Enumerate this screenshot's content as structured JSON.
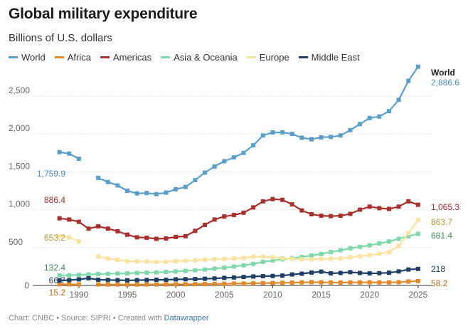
{
  "title": "Global military expenditure",
  "subtitle": "Billions of U.S. dollars",
  "footer": {
    "prefix": "Chart: CNBC • Source: SIPRI • Created with ",
    "link": "Datawrapper"
  },
  "chart_data": {
    "type": "line",
    "title": "Global military expenditure",
    "subtitle": "Billions of U.S. dollars",
    "xlabel": "",
    "ylabel": "",
    "xlim": [
      1987,
      2025.6
    ],
    "ylim": [
      0,
      2800
    ],
    "x_ticks": [
      1990,
      1995,
      2000,
      2005,
      2010,
      2015,
      2020,
      2025
    ],
    "y_ticks": [
      0,
      500,
      1000,
      1500,
      2000,
      2500
    ],
    "y_tick_labels": [
      "0",
      "500",
      "1,000",
      "1,500",
      "2,000",
      "2,500"
    ],
    "grid": true,
    "legend_position": "top",
    "series": [
      {
        "name": "World",
        "color": "#5b9fc8",
        "start_label": "1,759.9",
        "end_label": "2,886.6",
        "end_name": "World",
        "segments": [
          {
            "x": [
              1988,
              1989,
              1990
            ],
            "y": [
              1759.9,
              1740,
              1672
            ]
          },
          {
            "x": [
              1992,
              1993,
              1994,
              1995,
              1996,
              1997,
              1998,
              1999,
              2000,
              2001,
              2002,
              2003,
              2004,
              2005,
              2006,
              2007,
              2008,
              2009,
              2010,
              2011,
              2012,
              2013,
              2014,
              2015,
              2016,
              2017,
              2018,
              2019,
              2020,
              2021,
              2022,
              2023,
              2024,
              2025
            ],
            "y": [
              1420,
              1365,
              1320,
              1250,
              1215,
              1220,
              1205,
              1225,
              1270,
              1300,
              1390,
              1490,
              1570,
              1640,
              1690,
              1750,
              1850,
              1980,
              2020,
              2020,
              2000,
              1950,
              1930,
              1955,
              1960,
              1980,
              2050,
              2130,
              2210,
              2230,
              2300,
              2450,
              2700,
              2886.6
            ]
          }
        ]
      },
      {
        "name": "Africa",
        "color": "#e08a2c",
        "start_label": "15.2",
        "end_label": "58.2",
        "segments": [
          {
            "x": [
              1988,
              1989,
              1990
            ],
            "y": [
              15.2,
              14,
              13
            ]
          },
          {
            "x": [
              1992,
              1993,
              1994,
              1995,
              1996,
              1997,
              1998,
              1999,
              2000,
              2001,
              2002,
              2003,
              2004,
              2005,
              2006,
              2007,
              2008,
              2009,
              2010,
              2011,
              2012,
              2013,
              2014,
              2015,
              2016,
              2017,
              2018,
              2019,
              2020,
              2021,
              2022,
              2023,
              2024,
              2025
            ],
            "y": [
              13,
              12,
              12,
              12,
              12,
              13,
              13,
              14,
              15,
              16,
              17,
              18,
              20,
              22,
              24,
              26,
              29,
              31,
              33,
              35,
              37,
              40,
              43,
              41,
              39,
              38,
              40,
              40,
              41,
              40,
              40,
              42,
              52,
              58.2
            ]
          }
        ]
      },
      {
        "name": "Americas",
        "color": "#a8302e",
        "start_label": "886.4",
        "end_label": "1,065.3",
        "segments": [
          {
            "x": [
              1988,
              1989,
              1990,
              1991,
              1992,
              1993,
              1994,
              1995,
              1996,
              1997,
              1998,
              1999,
              2000,
              2001,
              2002,
              2003,
              2004,
              2005,
              2006,
              2007,
              2008,
              2009,
              2010,
              2011,
              2012,
              2013,
              2014,
              2015,
              2016,
              2017,
              2018,
              2019,
              2020,
              2021,
              2022,
              2023,
              2024,
              2025
            ],
            "y": [
              886.4,
              870,
              840,
              750,
              780,
              750,
              715,
              670,
              635,
              630,
              615,
              620,
              640,
              650,
              720,
              800,
              870,
              910,
              930,
              960,
              1030,
              1110,
              1140,
              1130,
              1070,
              990,
              940,
              920,
              915,
              920,
              945,
              1000,
              1040,
              1020,
              1010,
              1040,
              1110,
              1065.3
            ]
          }
        ]
      },
      {
        "name": "Asia & Oceania",
        "color": "#7fd8a9",
        "start_label": "132.4",
        "end_label": "681.4",
        "segments": [
          {
            "x": [
              1988,
              1989,
              1990,
              1991,
              1992,
              1993,
              1994,
              1995,
              1996,
              1997,
              1998,
              1999,
              2000,
              2001,
              2002,
              2003,
              2004,
              2005,
              2006,
              2007,
              2008,
              2009,
              2010,
              2011,
              2012,
              2013,
              2014,
              2015,
              2016,
              2017,
              2018,
              2019,
              2020,
              2021,
              2022,
              2023,
              2024,
              2025
            ],
            "y": [
              132.4,
              135,
              140,
              145,
              150,
              153,
              157,
              160,
              165,
              170,
              172,
              178,
              185,
              192,
              200,
              210,
              222,
              235,
              250,
              265,
              285,
              310,
              330,
              345,
              360,
              375,
              395,
              415,
              440,
              465,
              490,
              510,
              530,
              555,
              580,
              615,
              650,
              681.4
            ]
          }
        ]
      },
      {
        "name": "Europe",
        "color": "#f8e3a0",
        "start_label": "653.2",
        "end_label": "863.7",
        "segments": [
          {
            "x": [
              1988,
              1989,
              1990
            ],
            "y": [
              653.2,
              635,
              580
            ]
          },
          {
            "x": [
              1992,
              1993,
              1994,
              1995,
              1996,
              1997,
              1998,
              1999,
              2000,
              2001,
              2002,
              2003,
              2004,
              2005,
              2006,
              2007,
              2008,
              2009,
              2010,
              2011,
              2012,
              2013,
              2014,
              2015,
              2016,
              2017,
              2018,
              2019,
              2020,
              2021,
              2022,
              2023,
              2024,
              2025
            ],
            "y": [
              380,
              355,
              340,
              320,
              318,
              315,
              310,
              312,
              320,
              325,
              330,
              340,
              345,
              350,
              355,
              362,
              380,
              378,
              372,
              360,
              352,
              345,
              345,
              350,
              352,
              358,
              370,
              385,
              400,
              420,
              440,
              520,
              690,
              863.7
            ]
          }
        ]
      },
      {
        "name": "Middle East",
        "color": "#1d3f66",
        "start_label": "66.7",
        "end_label": "218",
        "segments": [
          {
            "x": [
              1988,
              1989,
              1990,
              1991,
              1992,
              1993,
              1994,
              1995,
              1996,
              1997,
              1998,
              1999,
              2000,
              2001,
              2002,
              2003,
              2004,
              2005,
              2006,
              2007,
              2008,
              2009,
              2010,
              2011,
              2012,
              2013,
              2014,
              2015,
              2016,
              2017,
              2018,
              2019,
              2020,
              2021,
              2022,
              2023,
              2024,
              2025
            ],
            "y": [
              66.7,
              70,
              80,
              95,
              75,
              72,
              70,
              68,
              70,
              72,
              75,
              74,
              80,
              82,
              84,
              88,
              92,
              100,
              105,
              112,
              118,
              122,
              125,
              130,
              145,
              155,
              170,
              182,
              160,
              165,
              175,
              165,
              160,
              162,
              168,
              185,
              210,
              218
            ]
          }
        ]
      }
    ]
  }
}
